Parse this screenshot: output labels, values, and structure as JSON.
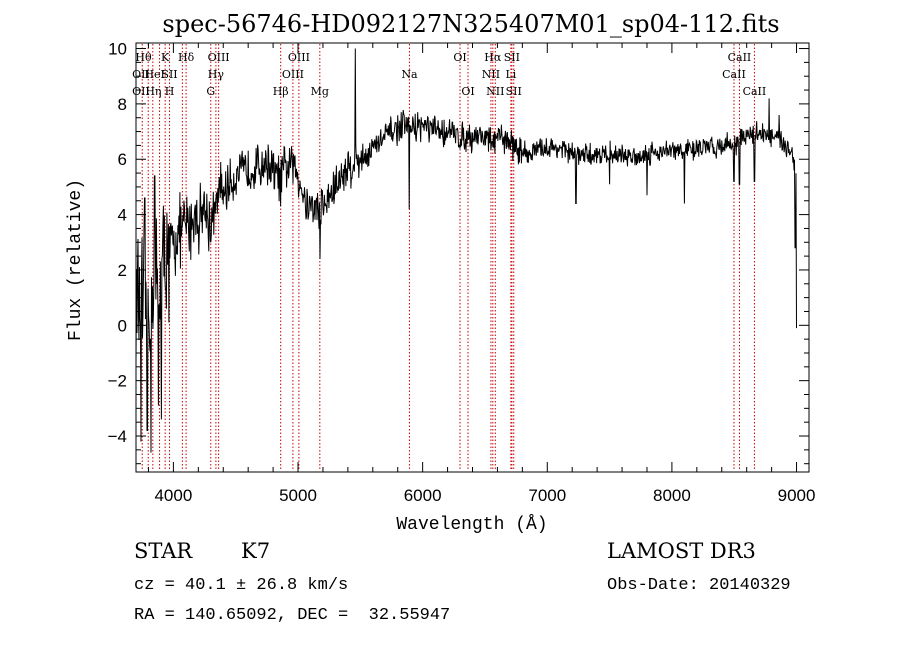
{
  "chart_data": {
    "type": "line",
    "title": "spec-56746-HD092127N325407M01_sp04-112.fits",
    "xlabel": "Wavelength (Å)",
    "ylabel": "Flux (relative)",
    "xlim": [
      3700,
      9100
    ],
    "ylim": [
      -5.3,
      10.2
    ],
    "xticks": [
      4000,
      5000,
      6000,
      7000,
      8000,
      9000
    ],
    "yticks": [
      -4,
      -2,
      0,
      2,
      4,
      6,
      8,
      10
    ],
    "grid": false,
    "legend": "none",
    "series": [
      {
        "spectrum_anchors": [
          [
            3700,
            1.0
          ],
          [
            3760,
            0.4
          ],
          [
            3820,
            1.2
          ],
          [
            3880,
            1.5
          ],
          [
            3940,
            2.5
          ],
          [
            4000,
            3.0
          ],
          [
            4050,
            3.3
          ],
          [
            4100,
            3.6
          ],
          [
            4150,
            3.8
          ],
          [
            4200,
            4.0
          ],
          [
            4250,
            4.2
          ],
          [
            4300,
            3.6
          ],
          [
            4350,
            4.5
          ],
          [
            4400,
            4.8
          ],
          [
            4450,
            5.1
          ],
          [
            4500,
            5.4
          ],
          [
            4550,
            5.5
          ],
          [
            4600,
            5.6
          ],
          [
            4650,
            5.7
          ],
          [
            4700,
            5.8
          ],
          [
            4750,
            5.9
          ],
          [
            4800,
            5.6
          ],
          [
            4850,
            5.3
          ],
          [
            4900,
            5.7
          ],
          [
            4950,
            5.8
          ],
          [
            5000,
            5.5
          ],
          [
            5050,
            4.6
          ],
          [
            5100,
            4.3
          ],
          [
            5150,
            4.2
          ],
          [
            5200,
            4.3
          ],
          [
            5250,
            4.6
          ],
          [
            5300,
            5.0
          ],
          [
            5350,
            5.4
          ],
          [
            5400,
            5.7
          ],
          [
            5450,
            5.9
          ],
          [
            5500,
            6.0
          ],
          [
            5550,
            6.2
          ],
          [
            5600,
            6.4
          ],
          [
            5650,
            6.6
          ],
          [
            5700,
            6.8
          ],
          [
            5750,
            7.0
          ],
          [
            5800,
            7.1
          ],
          [
            5850,
            7.2
          ],
          [
            5900,
            7.1
          ],
          [
            5950,
            7.2
          ],
          [
            6000,
            7.2
          ],
          [
            6050,
            7.1
          ],
          [
            6100,
            7.0
          ],
          [
            6150,
            7.0
          ],
          [
            6200,
            7.0
          ],
          [
            6250,
            6.9
          ],
          [
            6300,
            6.8
          ],
          [
            6350,
            6.8
          ],
          [
            6400,
            6.8
          ],
          [
            6450,
            6.9
          ],
          [
            6500,
            6.8
          ],
          [
            6550,
            6.6
          ],
          [
            6600,
            6.7
          ],
          [
            6650,
            6.8
          ],
          [
            6700,
            6.6
          ],
          [
            6750,
            6.4
          ],
          [
            6800,
            6.3
          ],
          [
            6850,
            6.2
          ],
          [
            6900,
            6.3
          ],
          [
            7000,
            6.4
          ],
          [
            7100,
            6.4
          ],
          [
            7200,
            6.2
          ],
          [
            7300,
            6.1
          ],
          [
            7400,
            6.2
          ],
          [
            7500,
            6.2
          ],
          [
            7600,
            6.1
          ],
          [
            7700,
            6.1
          ],
          [
            7800,
            6.2
          ],
          [
            7900,
            6.3
          ],
          [
            8000,
            6.3
          ],
          [
            8100,
            6.3
          ],
          [
            8200,
            6.4
          ],
          [
            8300,
            6.4
          ],
          [
            8400,
            6.5
          ],
          [
            8500,
            6.6
          ],
          [
            8600,
            6.8
          ],
          [
            8700,
            7.0
          ],
          [
            8800,
            6.8
          ],
          [
            8900,
            6.6
          ],
          [
            8960,
            6.3
          ],
          [
            9000,
            5.6
          ]
        ],
        "features": [
          {
            "x": 3740,
            "y": -4.2
          },
          {
            "x": 3770,
            "y": 4.6
          },
          {
            "x": 3790,
            "y": -3.8
          },
          {
            "x": 3820,
            "y": -4.6
          },
          {
            "x": 3850,
            "y": 5.4
          },
          {
            "x": 3880,
            "y": -2.9
          },
          {
            "x": 3905,
            "y": -3.4
          },
          {
            "x": 3965,
            "y": 0.1
          },
          {
            "x": 4300,
            "y": 3.0
          },
          {
            "x": 4380,
            "y": 5.9
          },
          {
            "x": 4860,
            "y": 4.3
          },
          {
            "x": 5175,
            "y": 2.4
          },
          {
            "x": 5460,
            "y": 10.0
          },
          {
            "x": 5892,
            "y": 4.2
          },
          {
            "x": 7230,
            "y": 4.4
          },
          {
            "x": 7500,
            "y": 5.1
          },
          {
            "x": 7800,
            "y": 4.7
          },
          {
            "x": 8100,
            "y": 4.4
          },
          {
            "x": 8498,
            "y": 5.2
          },
          {
            "x": 8542,
            "y": 5.1
          },
          {
            "x": 8662,
            "y": 5.2
          },
          {
            "x": 8780,
            "y": 8.2
          },
          {
            "x": 8860,
            "y": 7.6
          },
          {
            "x": 8990,
            "y": 2.8
          },
          {
            "x": 9000,
            "y": -0.1
          }
        ]
      }
    ],
    "line_markers": [
      {
        "x": 3750,
        "labels": [
          "Hθ",
          "OII"
        ]
      },
      {
        "x": 3798,
        "labels": [
          "Hθ",
          "OII"
        ]
      },
      {
        "x": 3835,
        "labels": [
          "Hη",
          "HeI"
        ]
      },
      {
        "x": 3889,
        "labels": [
          "Hη",
          "HeI"
        ]
      },
      {
        "x": 3934,
        "labels": [
          "K"
        ]
      },
      {
        "x": 3969,
        "labels": [
          "H",
          "SII"
        ]
      },
      {
        "x": 4072,
        "labels": [
          "SII"
        ]
      },
      {
        "x": 4102,
        "labels": [
          "Hδ"
        ]
      },
      {
        "x": 4300,
        "labels": [
          "G"
        ]
      },
      {
        "x": 4341,
        "labels": [
          "Hγ"
        ]
      },
      {
        "x": 4363,
        "labels": [
          "OIII"
        ]
      },
      {
        "x": 4861,
        "labels": [
          "Hβ"
        ]
      },
      {
        "x": 4959,
        "labels": [
          "OIII"
        ]
      },
      {
        "x": 5007,
        "labels": [
          "OIII"
        ]
      },
      {
        "x": 5175,
        "labels": [
          "Mg"
        ]
      },
      {
        "x": 5894,
        "labels": [
          "Na"
        ]
      },
      {
        "x": 6300,
        "labels": [
          "OI"
        ]
      },
      {
        "x": 6364,
        "labels": [
          "OI"
        ]
      },
      {
        "x": 6548,
        "labels": [
          "NII"
        ]
      },
      {
        "x": 6563,
        "labels": [
          "Hα"
        ]
      },
      {
        "x": 6583,
        "labels": [
          "NII"
        ]
      },
      {
        "x": 6708,
        "labels": [
          "Li"
        ]
      },
      {
        "x": 6716,
        "labels": [
          "SII"
        ]
      },
      {
        "x": 6731,
        "labels": [
          "SII"
        ]
      },
      {
        "x": 8498,
        "labels": [
          "CaII"
        ]
      },
      {
        "x": 8542,
        "labels": [
          "CaII"
        ]
      },
      {
        "x": 8662,
        "labels": [
          "CaII"
        ]
      }
    ],
    "marker_label_rows": [
      {
        "text": "Hθ",
        "x": 3760,
        "row": 1
      },
      {
        "text": "K",
        "x": 3934,
        "row": 1
      },
      {
        "text": "Hδ",
        "x": 4102,
        "row": 1
      },
      {
        "text": "OIII",
        "x": 4363,
        "row": 1
      },
      {
        "text": "OIII",
        "x": 5007,
        "row": 1
      },
      {
        "text": "OI",
        "x": 6300,
        "row": 1
      },
      {
        "text": "Hα",
        "x": 6563,
        "row": 1
      },
      {
        "text": "SII",
        "x": 6716,
        "row": 1
      },
      {
        "text": "CaII",
        "x": 8542,
        "row": 1
      },
      {
        "text": "OII",
        "x": 3740,
        "row": 2
      },
      {
        "text": "HeI",
        "x": 3850,
        "row": 2
      },
      {
        "text": "SII",
        "x": 3969,
        "row": 2
      },
      {
        "text": "Hγ",
        "x": 4341,
        "row": 2
      },
      {
        "text": "OIII",
        "x": 4959,
        "row": 2
      },
      {
        "text": "Na",
        "x": 5894,
        "row": 2
      },
      {
        "text": "NII",
        "x": 6548,
        "row": 2
      },
      {
        "text": "Li",
        "x": 6708,
        "row": 2
      },
      {
        "text": "CaII",
        "x": 8498,
        "row": 2
      },
      {
        "text": "OII",
        "x": 3740,
        "row": 3
      },
      {
        "text": "Hη",
        "x": 3840,
        "row": 3
      },
      {
        "text": "H",
        "x": 3969,
        "row": 3
      },
      {
        "text": "G",
        "x": 4300,
        "row": 3
      },
      {
        "text": "Hβ",
        "x": 4861,
        "row": 3
      },
      {
        "text": "Mg",
        "x": 5175,
        "row": 3
      },
      {
        "text": "OI",
        "x": 6364,
        "row": 3
      },
      {
        "text": "NII",
        "x": 6583,
        "row": 3
      },
      {
        "text": "SII",
        "x": 6731,
        "row": 3
      },
      {
        "text": "CaII",
        "x": 8662,
        "row": 3
      }
    ],
    "colors": {
      "spectrum": "#000000",
      "markers": "#cc0000",
      "axes": "#000000"
    }
  },
  "info": {
    "object_class": "STAR",
    "subclass": "K7",
    "survey": "LAMOST DR3",
    "cz": "cz = 40.1 ± 26.8 km/s",
    "obs_date": "Obs-Date: 20140329",
    "coords": "RA = 140.65092, DEC =  32.55947"
  }
}
